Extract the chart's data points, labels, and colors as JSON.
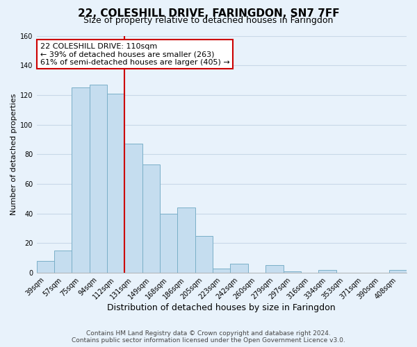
{
  "title": "22, COLESHILL DRIVE, FARINGDON, SN7 7FF",
  "subtitle": "Size of property relative to detached houses in Faringdon",
  "xlabel": "Distribution of detached houses by size in Faringdon",
  "ylabel": "Number of detached properties",
  "bar_labels": [
    "39sqm",
    "57sqm",
    "75sqm",
    "94sqm",
    "112sqm",
    "131sqm",
    "149sqm",
    "168sqm",
    "186sqm",
    "205sqm",
    "223sqm",
    "242sqm",
    "260sqm",
    "279sqm",
    "297sqm",
    "316sqm",
    "334sqm",
    "353sqm",
    "371sqm",
    "390sqm",
    "408sqm"
  ],
  "bar_values": [
    8,
    15,
    125,
    127,
    121,
    87,
    73,
    40,
    44,
    25,
    3,
    6,
    0,
    5,
    1,
    0,
    2,
    0,
    0,
    0,
    2
  ],
  "bar_color": "#c5ddef",
  "bar_edge_color": "#7aafc8",
  "vline_x": 4.5,
  "vline_color": "#cc0000",
  "annotation_text_line1": "22 COLESHILL DRIVE: 110sqm",
  "annotation_text_line2": "← 39% of detached houses are smaller (263)",
  "annotation_text_line3": "61% of semi-detached houses are larger (405) →",
  "annotation_box_edgecolor": "#cc0000",
  "annotation_box_facecolor": "white",
  "ylim": [
    0,
    160
  ],
  "yticks": [
    0,
    20,
    40,
    60,
    80,
    100,
    120,
    140,
    160
  ],
  "grid_color": "#c8d8e8",
  "background_color": "#e8f2fb",
  "footer_line1": "Contains HM Land Registry data © Crown copyright and database right 2024.",
  "footer_line2": "Contains public sector information licensed under the Open Government Licence v3.0.",
  "title_fontsize": 11,
  "subtitle_fontsize": 9,
  "xlabel_fontsize": 9,
  "ylabel_fontsize": 8,
  "tick_fontsize": 7,
  "annot_fontsize": 8,
  "footer_fontsize": 6.5
}
